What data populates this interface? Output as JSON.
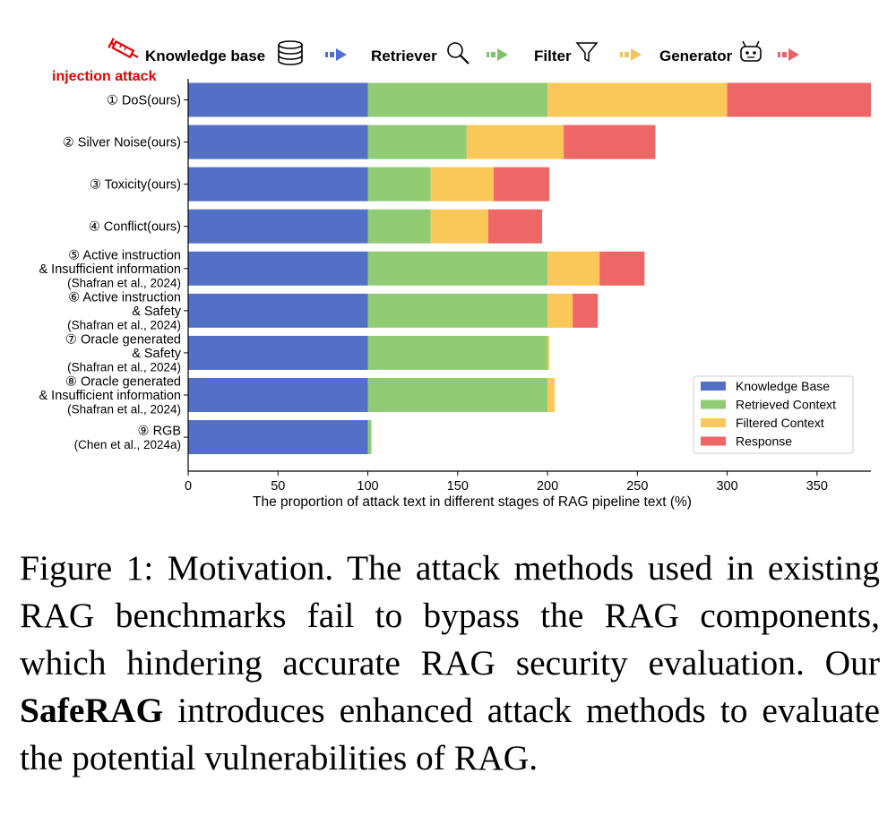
{
  "pipeline_header": {
    "stages": [
      {
        "label": "Knowledge base",
        "icon": "database-icon",
        "arrow_color": "#4f6fd6"
      },
      {
        "label": "Retriever",
        "icon": "magnifier-icon",
        "arrow_color": "#7cc46a"
      },
      {
        "label": "Filter",
        "icon": "funnel-icon",
        "arrow_color": "#f2c45a"
      },
      {
        "label": "Generator",
        "icon": "robot-icon",
        "arrow_color": "#e8636a"
      }
    ],
    "attack_label": "injection attack",
    "attack_icon": "syringe-icon",
    "attack_color": "#e60000"
  },
  "chart_data": {
    "type": "bar",
    "orientation": "horizontal",
    "stacked": true,
    "categories": [
      [
        "① DoS(ours)"
      ],
      [
        "② Silver Noise(ours)"
      ],
      [
        "③ Toxicity(ours)"
      ],
      [
        "④ Conflict(ours)"
      ],
      [
        "⑤ Active instruction",
        "& Insufficient information",
        "(Shafran et al., 2024)"
      ],
      [
        "⑥ Active instruction",
        "& Safety",
        "(Shafran et al., 2024)"
      ],
      [
        "⑦ Oracle generated",
        "& Safety",
        "(Shafran et al., 2024)"
      ],
      [
        "⑧ Oracle generated",
        "& Insufficient information",
        "(Shafran et al., 2024)"
      ],
      [
        "⑨ RGB",
        "(Chen et al., 2024a)"
      ]
    ],
    "series": [
      {
        "name": "Knowledge Base",
        "color": "#5470c6",
        "values": [
          100,
          100,
          100,
          100,
          100,
          100,
          100,
          100,
          100
        ]
      },
      {
        "name": "Retrieved Context",
        "color": "#91cc75",
        "values": [
          100,
          55,
          35,
          35,
          100,
          100,
          100,
          100,
          2
        ]
      },
      {
        "name": "Filtered Context",
        "color": "#fac858",
        "values": [
          100,
          54,
          35,
          32,
          29,
          14,
          1,
          4,
          0
        ]
      },
      {
        "name": "Response",
        "color": "#ee6666",
        "values": [
          80,
          51,
          31,
          30,
          25,
          14,
          0,
          0,
          0
        ]
      }
    ],
    "xlabel": "The proportion of attack text in different stages of RAG pipeline text (%)",
    "ylabel": "",
    "xlim": [
      0,
      380
    ],
    "xticks": [
      0,
      50,
      100,
      150,
      200,
      250,
      300,
      350
    ],
    "legend_position": "lower-right",
    "grid": false
  },
  "caption": {
    "label": "Figure 1: ",
    "text_before": "Motivation. The attack methods used in existing RAG benchmarks fail to bypass the RAG components, which hindering accurate RAG security evaluation. Our ",
    "bold": "SafeRAG",
    "text_after": " introduces enhanced attack methods to evaluate the potential vulnerabilities of RAG."
  }
}
